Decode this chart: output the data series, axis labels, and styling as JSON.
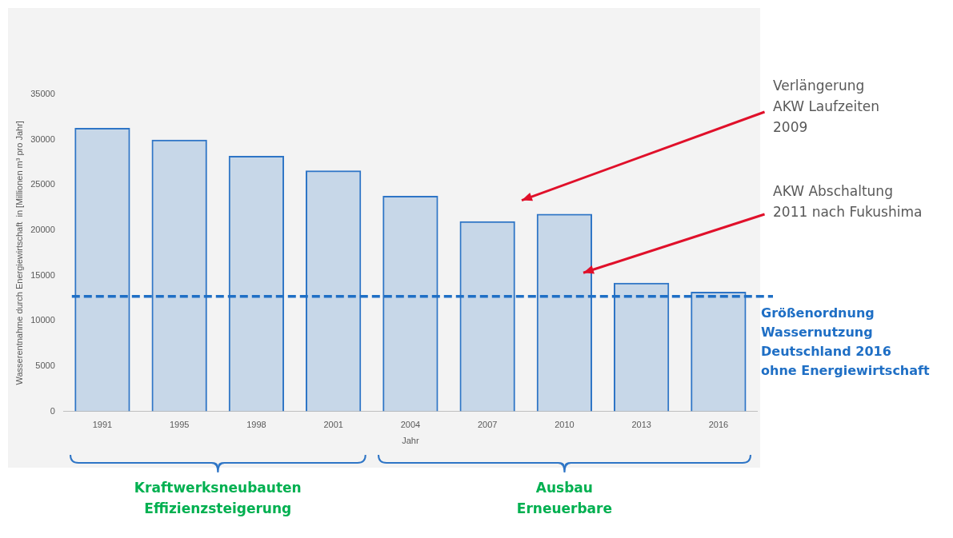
{
  "chart_data": {
    "type": "bar",
    "xlabel": "Jahr",
    "ylabel": "Wasserentnahme durch Energiewirtschaft  in [Millionen m³ pro Jahr]",
    "categories": [
      "1991",
      "1995",
      "1998",
      "2001",
      "2004",
      "2007",
      "2010",
      "2013",
      "2016"
    ],
    "values": [
      31300,
      30000,
      28200,
      26600,
      23800,
      21000,
      21800,
      14200,
      13200
    ],
    "color": "#2e75c6",
    "ylim": [
      0,
      35000
    ],
    "yticks": [
      0,
      5000,
      10000,
      15000,
      20000,
      25000,
      30000,
      35000
    ],
    "grid": false,
    "legend": false,
    "ref_lines": [
      {
        "axis": "y",
        "value": 12700,
        "label": "Größenordnung\nWassernutzung\nDeutschland 2016\nohne Energiewirtschaft",
        "color": "#1f6fc5",
        "line_style": "dashed"
      }
    ],
    "annotations": [
      "Verlängerung\nAKW Laufzeiten\n2009",
      "AKW Abschaltung\n2011 nach Fukushima",
      "Kraftwerksneubauten\nEffizienzsteigerung",
      "Ausbau\nErneuerbare"
    ]
  }
}
